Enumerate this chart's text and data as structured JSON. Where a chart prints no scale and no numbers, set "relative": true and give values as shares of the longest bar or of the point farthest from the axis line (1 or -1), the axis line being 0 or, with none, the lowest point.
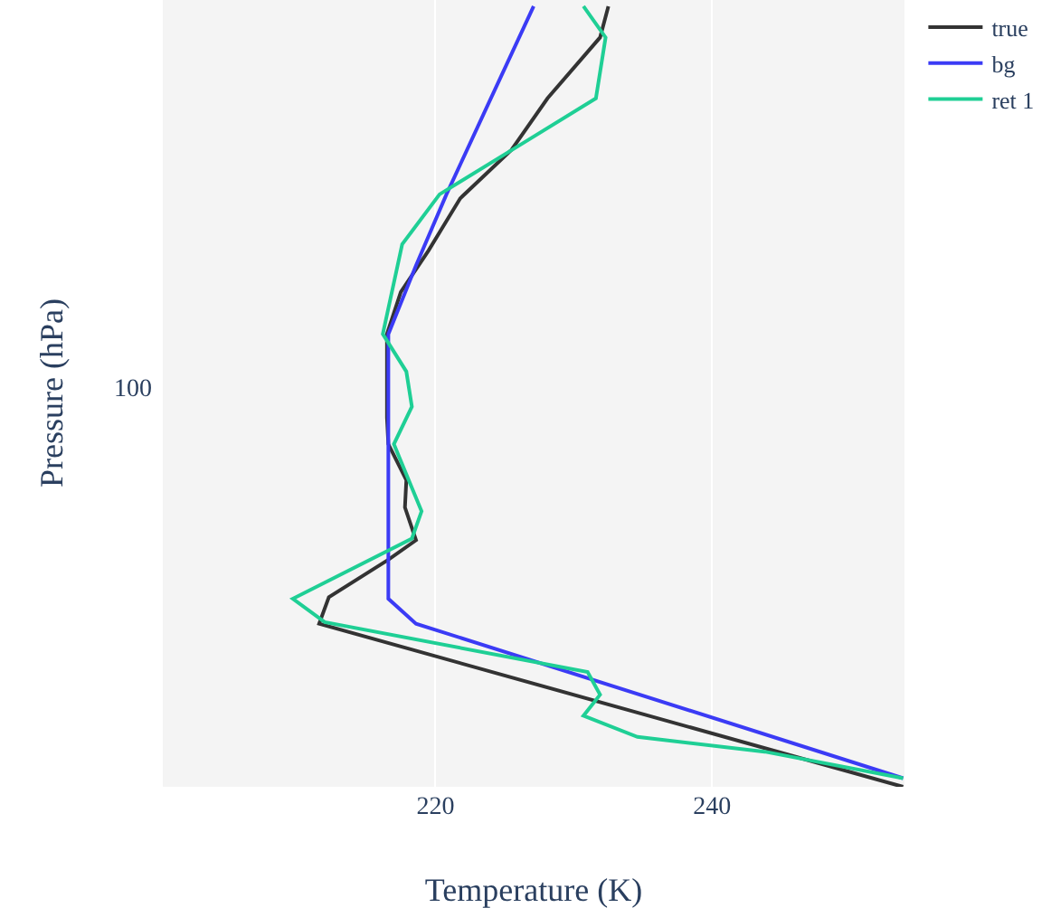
{
  "chart_data": {
    "type": "line",
    "xlabel": "Temperature (K)",
    "ylabel": "Pressure (hPa)",
    "xlim": [
      200.3,
      253.9
    ],
    "xticks": [
      220,
      240
    ],
    "relative": true,
    "grid": "x",
    "legend": "top right",
    "marker": "none",
    "line_style": "solid",
    "annotations": [
      "100"
    ],
    "series": [
      {
        "name": "true",
        "color": "#333333",
        "x": [
          232.5,
          231.9,
          228.1,
          225.5,
          221.8,
          219.5,
          217.5,
          216.5,
          216.5,
          216.6,
          217.9,
          217.8,
          218.6,
          216.6,
          212.3,
          211.6,
          253.8
        ],
        "values": [
          1.0,
          0.96,
          0.882,
          0.816,
          0.754,
          0.687,
          0.634,
          0.58,
          0.473,
          0.439,
          0.393,
          0.358,
          0.316,
          0.291,
          0.243,
          0.209,
          0
        ]
      },
      {
        "name": "bg",
        "color": "#3b3bf5",
        "x": [
          227.1,
          223.8,
          220.8,
          218.6,
          216.6,
          216.6,
          218.6,
          253.8
        ],
        "values": [
          1.0,
          0.874,
          0.759,
          0.668,
          0.58,
          0.241,
          0.209,
          0.011
        ]
      },
      {
        "name": "ret 1",
        "color": "#1fcf95",
        "x": [
          230.7,
          232.3,
          231.6,
          226.0,
          220.3,
          217.6,
          216.2,
          217.9,
          218.3,
          217.0,
          219.0,
          218.3,
          209.7,
          212.0,
          231.0,
          231.9,
          230.7,
          234.6,
          243.8,
          253.8
        ],
        "values": [
          1.0,
          0.96,
          0.882,
          0.821,
          0.759,
          0.695,
          0.58,
          0.532,
          0.487,
          0.439,
          0.353,
          0.318,
          0.241,
          0.211,
          0.147,
          0.118,
          0.091,
          0.064,
          0.045,
          0.011
        ]
      }
    ]
  }
}
